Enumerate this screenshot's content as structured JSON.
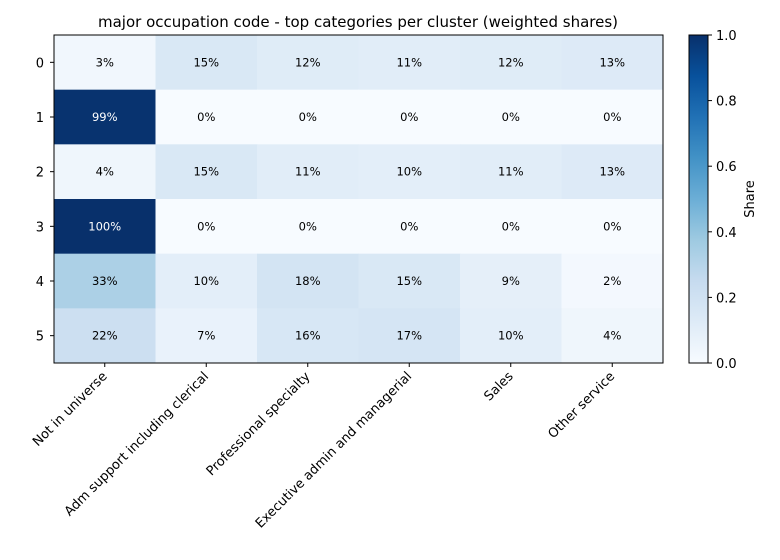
{
  "chart_data": {
    "type": "heatmap",
    "title": "major occupation code - top categories per cluster (weighted shares)",
    "xlabel": "",
    "ylabel": "",
    "x_categories": [
      "Not in universe",
      "Adm support including clerical",
      "Professional specialty",
      "Executive admin and managerial",
      "Sales",
      "Other service"
    ],
    "y_categories": [
      "0",
      "1",
      "2",
      "3",
      "4",
      "5"
    ],
    "values": [
      [
        0.03,
        0.15,
        0.12,
        0.11,
        0.12,
        0.13
      ],
      [
        0.99,
        0.0,
        0.0,
        0.0,
        0.0,
        0.0
      ],
      [
        0.04,
        0.15,
        0.11,
        0.1,
        0.11,
        0.13
      ],
      [
        1.0,
        0.0,
        0.0,
        0.0,
        0.0,
        0.0
      ],
      [
        0.33,
        0.1,
        0.18,
        0.15,
        0.09,
        0.02
      ],
      [
        0.22,
        0.07,
        0.16,
        0.17,
        0.1,
        0.04
      ]
    ],
    "cell_labels": [
      [
        "3%",
        "15%",
        "12%",
        "11%",
        "12%",
        "13%"
      ],
      [
        "99%",
        "0%",
        "0%",
        "0%",
        "0%",
        "0%"
      ],
      [
        "4%",
        "15%",
        "11%",
        "10%",
        "11%",
        "13%"
      ],
      [
        "100%",
        "0%",
        "0%",
        "0%",
        "0%",
        "0%"
      ],
      [
        "33%",
        "10%",
        "18%",
        "15%",
        "9%",
        "2%"
      ],
      [
        "22%",
        "7%",
        "16%",
        "17%",
        "10%",
        "4%"
      ]
    ],
    "colorbar": {
      "label": "Share",
      "range": [
        0.0,
        1.0
      ],
      "ticks": [
        "0.0",
        "0.2",
        "0.4",
        "0.6",
        "0.8",
        "1.0"
      ],
      "colormap": "Blues"
    },
    "grid": false,
    "legend": "none"
  }
}
